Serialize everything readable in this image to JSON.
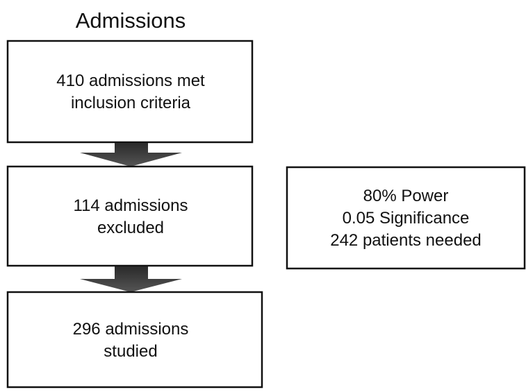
{
  "title": "Admissions",
  "nodes": [
    {
      "lines": [
        "410 admissions met",
        "inclusion criteria"
      ]
    },
    {
      "lines": [
        "114 admissions",
        "excluded"
      ]
    },
    {
      "lines": [
        "296 admissions",
        "studied"
      ]
    },
    {
      "lines": [
        "80% Power",
        "0.05 Significance",
        "242 patients needed"
      ]
    }
  ]
}
